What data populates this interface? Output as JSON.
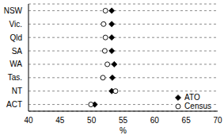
{
  "chart_data": {
    "type": "scatter",
    "orientation": "horizontal",
    "categories": [
      "NSW",
      "Vic.",
      "Qld",
      "SA",
      "WA",
      "Tas.",
      "NT",
      "ACT"
    ],
    "series": [
      {
        "name": "ATO",
        "color": "#000000",
        "marker": "diamond",
        "values": [
          53.2,
          53.2,
          53.2,
          53.2,
          53.6,
          53.3,
          53.2,
          50.5
        ]
      },
      {
        "name": "Census",
        "color": "#000000",
        "marker": "open_circle",
        "values": [
          52.2,
          51.9,
          52.2,
          52.1,
          52.5,
          51.8,
          53.8,
          49.9
        ]
      }
    ],
    "xlim": [
      40,
      70
    ],
    "xticks": [
      40,
      45,
      50,
      55,
      60,
      65,
      70
    ],
    "xlabel": "%",
    "grid": true,
    "legend": "lower right"
  }
}
